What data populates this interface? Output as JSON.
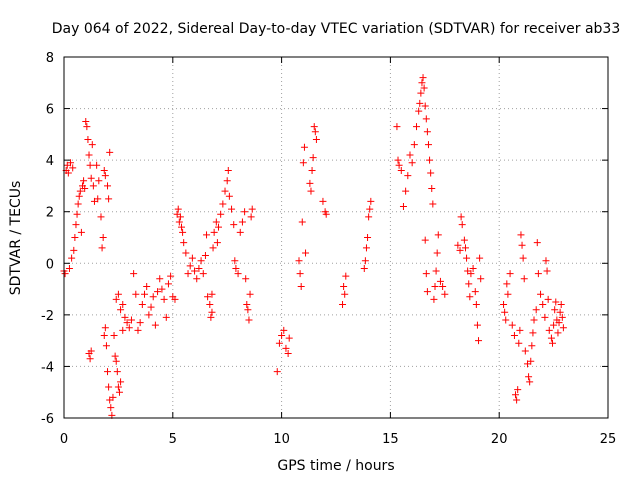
{
  "colors": {
    "series": "#ff0000",
    "axis": "#000000",
    "grid": "#a0a0a0",
    "background": "#ffffff"
  },
  "chart_data": {
    "type": "scatter",
    "marker": "plus",
    "title": "Day 064 of 2022, Sidereal Day-to-day VTEC variation (SDTVAR) for receiver ab33",
    "xlabel": "GPS time / hours",
    "ylabel": "SDTVAR / TECUs",
    "xlim": [
      0,
      25
    ],
    "ylim": [
      -6,
      8
    ],
    "xticks": [
      0,
      5,
      10,
      15,
      20,
      25
    ],
    "yticks": [
      -6,
      -4,
      -2,
      0,
      2,
      4,
      6,
      8
    ],
    "grid": true,
    "series": [
      {
        "name": "SDTVAR",
        "points": [
          [
            0.0,
            -0.3
          ],
          [
            0.05,
            -0.4
          ],
          [
            0.1,
            3.6
          ],
          [
            0.15,
            3.8
          ],
          [
            0.2,
            3.5
          ],
          [
            0.25,
            -0.2
          ],
          [
            0.3,
            3.9
          ],
          [
            0.35,
            0.2
          ],
          [
            0.4,
            3.7
          ],
          [
            0.45,
            0.5
          ],
          [
            0.5,
            1.0
          ],
          [
            0.55,
            1.5
          ],
          [
            0.6,
            1.9
          ],
          [
            0.65,
            2.3
          ],
          [
            0.7,
            2.6
          ],
          [
            0.75,
            2.8
          ],
          [
            0.8,
            1.2
          ],
          [
            0.85,
            3.0
          ],
          [
            0.9,
            3.2
          ],
          [
            0.95,
            2.9
          ],
          [
            1.0,
            5.5
          ],
          [
            1.05,
            5.3
          ],
          [
            1.1,
            4.8
          ],
          [
            1.15,
            4.2
          ],
          [
            1.2,
            3.8
          ],
          [
            1.25,
            3.3
          ],
          [
            1.3,
            4.6
          ],
          [
            1.35,
            3.0
          ],
          [
            1.4,
            2.4
          ],
          [
            1.5,
            3.8
          ],
          [
            1.55,
            2.5
          ],
          [
            1.6,
            3.2
          ],
          [
            1.7,
            1.8
          ],
          [
            1.75,
            0.6
          ],
          [
            1.8,
            1.0
          ],
          [
            1.85,
            3.6
          ],
          [
            1.9,
            3.4
          ],
          [
            2.0,
            3.0
          ],
          [
            2.05,
            2.5
          ],
          [
            2.1,
            4.3
          ],
          [
            1.15,
            -3.5
          ],
          [
            1.2,
            -3.7
          ],
          [
            1.25,
            -3.4
          ],
          [
            1.85,
            -2.8
          ],
          [
            1.9,
            -2.5
          ],
          [
            1.95,
            -3.2
          ],
          [
            2.0,
            -4.2
          ],
          [
            2.05,
            -4.8
          ],
          [
            2.1,
            -5.3
          ],
          [
            2.15,
            -5.6
          ],
          [
            2.2,
            -5.9
          ],
          [
            2.25,
            -5.2
          ],
          [
            2.3,
            -2.8
          ],
          [
            2.35,
            -3.6
          ],
          [
            2.4,
            -3.8
          ],
          [
            2.45,
            -4.2
          ],
          [
            2.5,
            -4.8
          ],
          [
            2.55,
            -5.0
          ],
          [
            2.6,
            -4.6
          ],
          [
            2.7,
            -2.6
          ],
          [
            2.4,
            -1.4
          ],
          [
            2.5,
            -1.2
          ],
          [
            2.6,
            -1.8
          ],
          [
            2.7,
            -1.6
          ],
          [
            2.8,
            -2.1
          ],
          [
            2.9,
            -2.3
          ],
          [
            3.0,
            -2.5
          ],
          [
            3.1,
            -2.2
          ],
          [
            3.2,
            -0.4
          ],
          [
            3.3,
            -1.2
          ],
          [
            3.4,
            -2.6
          ],
          [
            3.5,
            -2.3
          ],
          [
            3.6,
            -1.6
          ],
          [
            3.7,
            -1.2
          ],
          [
            3.8,
            -0.9
          ],
          [
            3.9,
            -2.0
          ],
          [
            4.0,
            -1.7
          ],
          [
            4.1,
            -1.3
          ],
          [
            4.2,
            -2.4
          ],
          [
            4.3,
            -1.1
          ],
          [
            4.4,
            -0.6
          ],
          [
            4.5,
            -1.0
          ],
          [
            4.6,
            -1.4
          ],
          [
            4.7,
            -2.1
          ],
          [
            4.8,
            -0.8
          ],
          [
            4.9,
            -0.5
          ],
          [
            5.0,
            -1.3
          ],
          [
            5.1,
            -1.4
          ],
          [
            5.2,
            1.9
          ],
          [
            5.25,
            2.1
          ],
          [
            5.3,
            1.6
          ],
          [
            5.35,
            1.8
          ],
          [
            5.4,
            1.4
          ],
          [
            5.45,
            1.2
          ],
          [
            5.5,
            0.8
          ],
          [
            5.6,
            0.4
          ],
          [
            5.7,
            -0.4
          ],
          [
            5.8,
            -0.1
          ],
          [
            5.9,
            0.2
          ],
          [
            6.0,
            -0.3
          ],
          [
            6.1,
            -0.6
          ],
          [
            6.2,
            -0.2
          ],
          [
            6.3,
            0.1
          ],
          [
            6.4,
            -0.4
          ],
          [
            6.5,
            0.3
          ],
          [
            6.55,
            1.1
          ],
          [
            6.6,
            -1.3
          ],
          [
            6.7,
            -1.6
          ],
          [
            6.8,
            -1.2
          ],
          [
            6.85,
            0.6
          ],
          [
            6.9,
            1.2
          ],
          [
            7.0,
            1.6
          ],
          [
            7.05,
            0.8
          ],
          [
            7.1,
            1.4
          ],
          [
            7.2,
            1.9
          ],
          [
            7.3,
            2.3
          ],
          [
            7.4,
            2.8
          ],
          [
            7.5,
            3.2
          ],
          [
            7.55,
            3.6
          ],
          [
            7.6,
            2.6
          ],
          [
            7.7,
            2.1
          ],
          [
            7.8,
            1.5
          ],
          [
            7.85,
            0.1
          ],
          [
            7.9,
            -0.2
          ],
          [
            8.0,
            -0.4
          ],
          [
            8.1,
            1.2
          ],
          [
            8.2,
            1.6
          ],
          [
            8.3,
            2.0
          ],
          [
            8.35,
            -0.6
          ],
          [
            8.4,
            -1.6
          ],
          [
            8.45,
            -1.8
          ],
          [
            8.5,
            -2.2
          ],
          [
            8.55,
            -1.2
          ],
          [
            8.6,
            1.8
          ],
          [
            8.65,
            2.1
          ],
          [
            6.75,
            -2.1
          ],
          [
            6.8,
            -1.9
          ],
          [
            9.8,
            -4.2
          ],
          [
            9.9,
            -3.1
          ],
          [
            10.0,
            -2.8
          ],
          [
            10.1,
            -2.6
          ],
          [
            10.2,
            -3.3
          ],
          [
            10.3,
            -3.5
          ],
          [
            10.35,
            -2.9
          ],
          [
            10.8,
            0.1
          ],
          [
            10.85,
            -0.4
          ],
          [
            10.9,
            -0.9
          ],
          [
            10.95,
            1.6
          ],
          [
            11.0,
            3.9
          ],
          [
            11.05,
            4.5
          ],
          [
            11.1,
            0.4
          ],
          [
            11.3,
            3.1
          ],
          [
            11.35,
            2.8
          ],
          [
            11.4,
            3.6
          ],
          [
            11.45,
            4.1
          ],
          [
            11.5,
            5.3
          ],
          [
            11.55,
            5.1
          ],
          [
            11.6,
            4.8
          ],
          [
            11.9,
            2.4
          ],
          [
            12.0,
            2.0
          ],
          [
            12.05,
            1.9
          ],
          [
            12.8,
            -1.6
          ],
          [
            12.85,
            -0.9
          ],
          [
            12.9,
            -1.2
          ],
          [
            12.95,
            -0.5
          ],
          [
            13.8,
            -0.2
          ],
          [
            13.85,
            0.1
          ],
          [
            13.9,
            0.6
          ],
          [
            13.95,
            1.0
          ],
          [
            14.0,
            1.8
          ],
          [
            14.05,
            2.1
          ],
          [
            14.1,
            2.4
          ],
          [
            15.3,
            5.3
          ],
          [
            15.35,
            4.0
          ],
          [
            15.4,
            3.8
          ],
          [
            15.5,
            3.6
          ],
          [
            15.6,
            2.2
          ],
          [
            15.7,
            2.8
          ],
          [
            15.8,
            3.4
          ],
          [
            15.9,
            4.2
          ],
          [
            16.0,
            3.9
          ],
          [
            16.1,
            4.6
          ],
          [
            16.2,
            5.3
          ],
          [
            16.3,
            5.9
          ],
          [
            16.35,
            6.2
          ],
          [
            16.4,
            6.6
          ],
          [
            16.45,
            7.0
          ],
          [
            16.5,
            7.2
          ],
          [
            16.55,
            6.8
          ],
          [
            16.6,
            6.1
          ],
          [
            16.65,
            5.6
          ],
          [
            16.7,
            5.1
          ],
          [
            16.75,
            4.6
          ],
          [
            16.8,
            4.0
          ],
          [
            16.85,
            3.5
          ],
          [
            16.9,
            2.9
          ],
          [
            16.95,
            2.3
          ],
          [
            17.0,
            -1.4
          ],
          [
            17.05,
            -0.9
          ],
          [
            17.1,
            -0.3
          ],
          [
            17.15,
            0.4
          ],
          [
            17.2,
            1.1
          ],
          [
            16.6,
            0.9
          ],
          [
            16.65,
            -0.4
          ],
          [
            16.7,
            -1.1
          ],
          [
            17.3,
            -0.7
          ],
          [
            17.4,
            -0.9
          ],
          [
            17.5,
            -1.2
          ],
          [
            18.1,
            0.7
          ],
          [
            18.2,
            0.5
          ],
          [
            18.25,
            1.8
          ],
          [
            18.3,
            1.5
          ],
          [
            18.4,
            0.9
          ],
          [
            18.45,
            0.6
          ],
          [
            18.5,
            0.2
          ],
          [
            18.55,
            -0.3
          ],
          [
            18.6,
            -0.8
          ],
          [
            18.65,
            -1.3
          ],
          [
            18.7,
            -0.4
          ],
          [
            18.8,
            -0.2
          ],
          [
            18.9,
            -1.1
          ],
          [
            18.95,
            -1.6
          ],
          [
            19.0,
            -2.4
          ],
          [
            19.05,
            -3.0
          ],
          [
            19.1,
            0.2
          ],
          [
            19.15,
            -0.6
          ],
          [
            20.2,
            -1.6
          ],
          [
            20.25,
            -1.9
          ],
          [
            20.3,
            -2.2
          ],
          [
            20.35,
            -0.8
          ],
          [
            20.4,
            -1.2
          ],
          [
            20.5,
            -0.4
          ],
          [
            20.6,
            -2.4
          ],
          [
            20.7,
            -2.8
          ],
          [
            20.75,
            -5.1
          ],
          [
            20.8,
            -5.3
          ],
          [
            20.85,
            -4.9
          ],
          [
            20.9,
            -3.1
          ],
          [
            20.95,
            -2.6
          ],
          [
            21.0,
            1.1
          ],
          [
            21.05,
            0.7
          ],
          [
            21.1,
            0.2
          ],
          [
            21.15,
            -0.6
          ],
          [
            21.2,
            -3.4
          ],
          [
            21.3,
            -3.9
          ],
          [
            21.35,
            -4.4
          ],
          [
            21.4,
            -4.6
          ],
          [
            21.45,
            -3.8
          ],
          [
            21.5,
            -3.2
          ],
          [
            21.55,
            -2.7
          ],
          [
            21.6,
            -2.2
          ],
          [
            21.7,
            -1.8
          ],
          [
            21.75,
            0.8
          ],
          [
            21.8,
            -0.4
          ],
          [
            21.9,
            -1.2
          ],
          [
            22.0,
            -1.6
          ],
          [
            22.1,
            -2.1
          ],
          [
            22.15,
            0.1
          ],
          [
            22.2,
            -0.3
          ],
          [
            22.25,
            -1.4
          ],
          [
            22.3,
            -2.6
          ],
          [
            22.4,
            -2.9
          ],
          [
            22.45,
            -3.1
          ],
          [
            22.5,
            -2.4
          ],
          [
            22.55,
            -1.8
          ],
          [
            22.6,
            -1.5
          ],
          [
            22.65,
            -2.2
          ],
          [
            22.7,
            -2.7
          ],
          [
            22.75,
            -2.3
          ],
          [
            22.8,
            -1.9
          ],
          [
            22.85,
            -1.6
          ],
          [
            22.9,
            -2.1
          ],
          [
            22.95,
            -2.5
          ]
        ]
      }
    ]
  }
}
